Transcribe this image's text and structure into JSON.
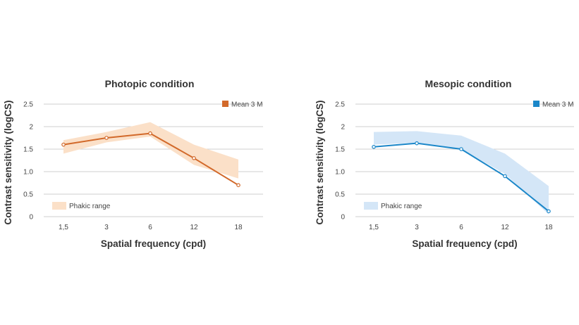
{
  "chart_data": [
    {
      "type": "line",
      "title": "Photopic condition",
      "xlabel": "Spatial frequency (cpd)",
      "ylabel": "Contrast sensitivity (logCS)",
      "categories": [
        "1,5",
        "3",
        "6",
        "12",
        "18"
      ],
      "y_ticks": [
        "0",
        "0.5",
        "1.0",
        "1.5",
        "2",
        "2.5"
      ],
      "ylim": [
        0,
        2.5
      ],
      "grid": true,
      "series": [
        {
          "name": "Mean 3 M",
          "values": [
            1.6,
            1.75,
            1.85,
            1.3,
            0.7
          ]
        }
      ],
      "band": {
        "name": "Phakic range",
        "lower": [
          1.4,
          1.65,
          1.78,
          1.15,
          0.85
        ],
        "upper": [
          1.7,
          1.88,
          2.1,
          1.6,
          1.27
        ]
      },
      "colors": {
        "line": "#d2692a",
        "band": "#fbe0c8"
      },
      "legend_placement": {
        "series": "top-right",
        "band": "bottom-left"
      }
    },
    {
      "type": "line",
      "title": "Mesopic condition",
      "xlabel": "Spatial frequency (cpd)",
      "ylabel": "Contrast sensitivity (logCS)",
      "categories": [
        "1,5",
        "3",
        "6",
        "12",
        "18"
      ],
      "y_ticks": [
        "0",
        "0.5",
        "1.0",
        "1.5",
        "2",
        "2.5"
      ],
      "ylim": [
        0,
        2.5
      ],
      "grid": true,
      "series": [
        {
          "name": "Mean 3 M",
          "values": [
            1.55,
            1.63,
            1.5,
            0.9,
            0.12
          ]
        }
      ],
      "band": {
        "name": "Phakic range",
        "lower": [
          1.6,
          1.64,
          1.5,
          0.95,
          0.05
        ],
        "upper": [
          1.88,
          1.9,
          1.8,
          1.4,
          0.68
        ]
      },
      "colors": {
        "line": "#1b87c9",
        "band": "#d4e6f7"
      },
      "legend_placement": {
        "series": "top-right",
        "band": "bottom-left"
      }
    }
  ]
}
